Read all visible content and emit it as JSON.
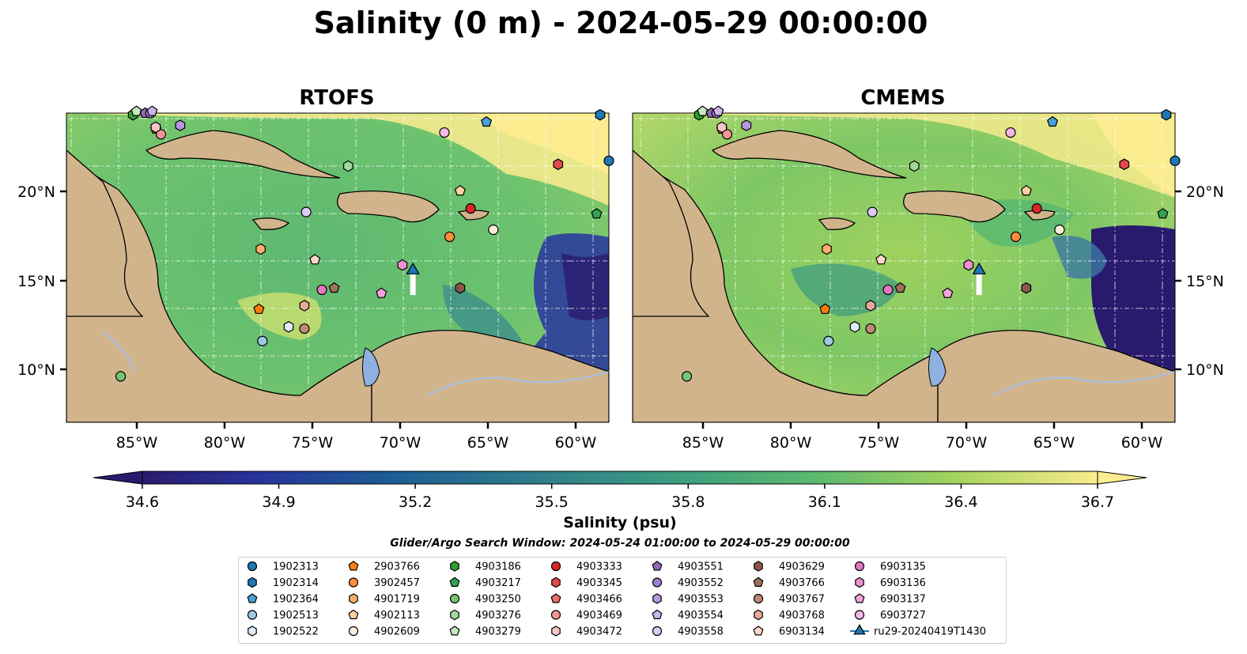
{
  "figure": {
    "title": "Salinity (0 m) - 2024-05-29 00:00:00",
    "panels": [
      {
        "title": "RTOFS",
        "xticklabels": [
          "85°W",
          "80°W",
          "75°W",
          "70°W",
          "65°W",
          "60°W"
        ],
        "yticklabels": [
          "20°N",
          "15°N",
          "10°N"
        ]
      },
      {
        "title": "CMEMS",
        "xticklabels": [
          "85°W",
          "80°W",
          "75°W",
          "70°W",
          "65°W",
          "60°W"
        ],
        "yticklabels": [
          "20°N",
          "15°N",
          "10°N"
        ]
      }
    ],
    "colorbar": {
      "label": "Salinity (psu)",
      "ticks": [
        "34.6",
        "34.9",
        "35.2",
        "35.5",
        "35.8",
        "36.1",
        "36.4",
        "36.7"
      ],
      "vmin": 34.6,
      "vmax": 36.7,
      "extend": "both",
      "colormap": "haline"
    },
    "search_window": "Glider/Argo Search Window: 2024-05-24 01:00:00 to 2024-05-29 00:00:00",
    "colors": {
      "land": "#d2b48c",
      "lake": "#8fb1e0",
      "low": "#2a1a6e",
      "high": "#fbec8f"
    }
  },
  "chart_data": {
    "type": "heatmap",
    "title": "Salinity (0 m) - 2024-05-29 00:00:00",
    "variable": "Salinity (psu)",
    "panels": [
      "RTOFS",
      "CMEMS"
    ],
    "xlim": [
      -89.0,
      -58.0
    ],
    "ylim": [
      7.0,
      24.5
    ],
    "clim": [
      34.6,
      36.7
    ],
    "xticks": [
      -85,
      -80,
      -75,
      -70,
      -65,
      -60
    ],
    "yticks": [
      20,
      15,
      10
    ],
    "glider_track": {
      "name": "ru29-20240419T1430",
      "lon": [
        -69.2,
        -69.2
      ],
      "lat": [
        14.2,
        15.6
      ]
    },
    "legend": [
      {
        "id": "1902313",
        "marker": "circle",
        "color": "#1f77b4",
        "lon": -58.0,
        "lat": 21.8
      },
      {
        "id": "1902314",
        "marker": "hexagon",
        "color": "#1f77b4",
        "lon": -58.5,
        "lat": 24.4
      },
      {
        "id": "1902364",
        "marker": "pentagon",
        "color": "#4a9fd8",
        "lon": -65.0,
        "lat": 24.0
      },
      {
        "id": "1902513",
        "marker": "circle",
        "color": "#9ecae1",
        "lon": -77.8,
        "lat": 11.6
      },
      {
        "id": "1902522",
        "marker": "hexagon",
        "color": "#deebf7",
        "lon": -76.3,
        "lat": 12.4
      },
      {
        "id": "2903766",
        "marker": "pentagon",
        "color": "#ff7f0e",
        "lon": -78.0,
        "lat": 13.4
      },
      {
        "id": "3902457",
        "marker": "circle",
        "color": "#fd8d3c",
        "lon": -67.1,
        "lat": 17.5
      },
      {
        "id": "4901719",
        "marker": "hexagon",
        "color": "#fdae6b",
        "lon": -77.9,
        "lat": 16.8
      },
      {
        "id": "4902113",
        "marker": "pentagon",
        "color": "#fdd0a2",
        "lon": -66.5,
        "lat": 20.1
      },
      {
        "id": "4902609",
        "marker": "circle",
        "color": "#feedde",
        "lon": -64.6,
        "lat": 17.9
      },
      {
        "id": "4903186",
        "marker": "hexagon",
        "color": "#2ca02c",
        "lon": -85.2,
        "lat": 24.4
      },
      {
        "id": "4903217",
        "marker": "pentagon",
        "color": "#31a354",
        "lon": -58.7,
        "lat": 18.8
      },
      {
        "id": "4903250",
        "marker": "circle",
        "color": "#74c476",
        "lon": -85.9,
        "lat": 9.6
      },
      {
        "id": "4903276",
        "marker": "hexagon",
        "color": "#a1d99b",
        "lon": -72.9,
        "lat": 21.5
      },
      {
        "id": "4903279",
        "marker": "pentagon",
        "color": "#c7e9c0",
        "lon": -85.0,
        "lat": 24.6
      },
      {
        "id": "4903333",
        "marker": "circle",
        "color": "#d62728",
        "lon": -65.9,
        "lat": 19.1
      },
      {
        "id": "4903345",
        "marker": "hexagon",
        "color": "#e34a4a",
        "lon": -60.9,
        "lat": 21.6
      },
      {
        "id": "4903466",
        "marker": "pentagon",
        "color": "#f26b6b",
        "lon": -83.9,
        "lat": 23.6
      },
      {
        "id": "4903469",
        "marker": "circle",
        "color": "#f49595",
        "lon": -83.6,
        "lat": 23.3
      },
      {
        "id": "4903472",
        "marker": "hexagon",
        "color": "#fbc4c4",
        "lon": -83.9,
        "lat": 23.7
      },
      {
        "id": "4903551",
        "marker": "pentagon",
        "color": "#9467bd",
        "lon": -84.5,
        "lat": 24.5
      },
      {
        "id": "4903552",
        "marker": "circle",
        "color": "#a17ed0",
        "lon": -84.2,
        "lat": 24.5
      },
      {
        "id": "4903553",
        "marker": "hexagon",
        "color": "#b497df",
        "lon": -82.5,
        "lat": 23.8
      },
      {
        "id": "4903554",
        "marker": "pentagon",
        "color": "#cbb5ea",
        "lon": -84.1,
        "lat": 24.6
      },
      {
        "id": "4903558",
        "marker": "circle",
        "color": "#dcc9f5",
        "lon": -75.3,
        "lat": 18.9
      },
      {
        "id": "4903629",
        "marker": "hexagon",
        "color": "#8c564b",
        "lon": -66.5,
        "lat": 14.6
      },
      {
        "id": "4903766",
        "marker": "pentagon",
        "color": "#a0705f",
        "lon": -73.7,
        "lat": 14.6
      },
      {
        "id": "4903767",
        "marker": "circle",
        "color": "#c08878",
        "lon": -75.4,
        "lat": 12.3
      },
      {
        "id": "4903768",
        "marker": "hexagon",
        "color": "#e6aa9a",
        "lon": -75.4,
        "lat": 13.6
      },
      {
        "id": "6903134",
        "marker": "pentagon",
        "color": "#fcd7c9",
        "lon": -74.8,
        "lat": 16.2
      },
      {
        "id": "6903135",
        "marker": "circle",
        "color": "#e377c2",
        "lon": -74.4,
        "lat": 14.5
      },
      {
        "id": "6903136",
        "marker": "hexagon",
        "color": "#ef8fd0",
        "lon": -69.8,
        "lat": 15.9
      },
      {
        "id": "6903137",
        "marker": "pentagon",
        "color": "#f5a3dc",
        "lon": -71.0,
        "lat": 14.3
      },
      {
        "id": "6903727",
        "marker": "circle",
        "color": "#f7b6e8",
        "lon": -67.4,
        "lat": 23.4
      },
      {
        "id": "ru29-20240419T1430",
        "marker": "triangle-line",
        "color": "#1f77b4",
        "lon": -69.2,
        "lat": 15.6
      }
    ]
  }
}
